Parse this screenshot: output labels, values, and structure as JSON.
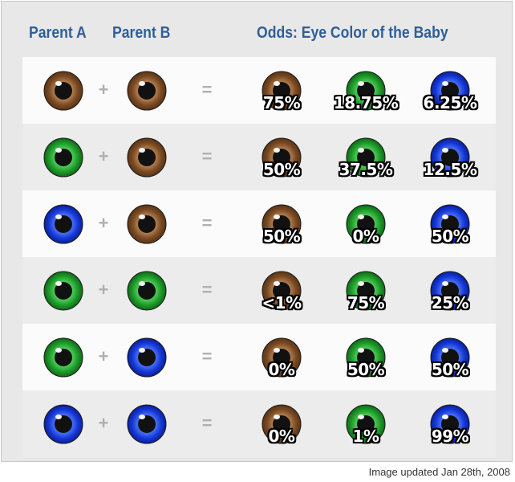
{
  "header": {
    "parent_a": "Parent A",
    "parent_b": "Parent B",
    "odds": "Odds: Eye Color of the Baby"
  },
  "colors": {
    "header_text": "#2f5f98",
    "brown": "#7a4a24",
    "green": "#1f9a2a",
    "blue": "#1538d8"
  },
  "operators": {
    "plus": "+",
    "equals": "="
  },
  "outcome_columns": [
    "brown",
    "green",
    "blue"
  ],
  "rows": [
    {
      "parent_a": "brown",
      "parent_b": "brown",
      "odds": [
        "75%",
        "18.75%",
        "6.25%"
      ]
    },
    {
      "parent_a": "green",
      "parent_b": "brown",
      "odds": [
        "50%",
        "37.5%",
        "12.5%"
      ]
    },
    {
      "parent_a": "blue",
      "parent_b": "brown",
      "odds": [
        "50%",
        "0%",
        "50%"
      ]
    },
    {
      "parent_a": "green",
      "parent_b": "green",
      "odds": [
        "<1%",
        "75%",
        "25%"
      ]
    },
    {
      "parent_a": "green",
      "parent_b": "blue",
      "odds": [
        "0%",
        "50%",
        "50%"
      ]
    },
    {
      "parent_a": "blue",
      "parent_b": "blue",
      "odds": [
        "0%",
        "1%",
        "99%"
      ]
    }
  ],
  "footer": "Image updated Jan 28th, 2008"
}
